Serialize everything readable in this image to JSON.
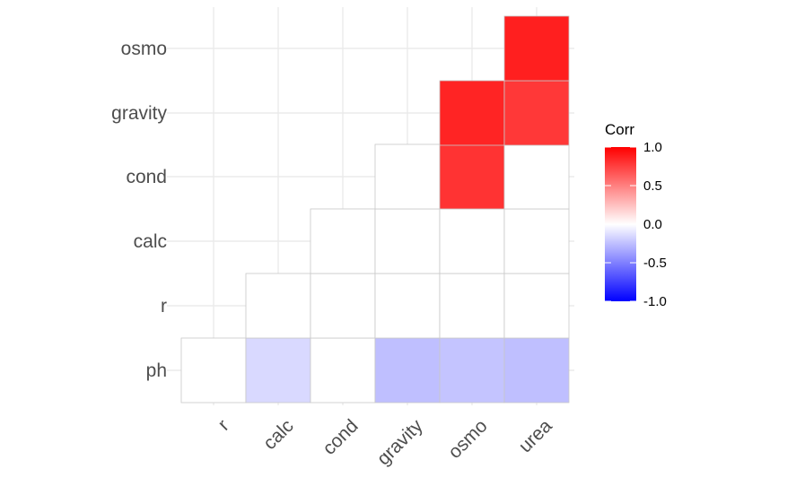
{
  "chart_data": {
    "type": "heatmap",
    "x_categories": [
      "r",
      "calc",
      "cond",
      "gravity",
      "osmo",
      "urea"
    ],
    "y_categories": [
      "ph",
      "r",
      "calc",
      "cond",
      "gravity",
      "osmo"
    ],
    "cells": [
      {
        "x": "r",
        "y": "ph",
        "value": 0.0
      },
      {
        "x": "calc",
        "y": "ph",
        "value": -0.15
      },
      {
        "x": "cond",
        "y": "ph",
        "value": 0.0
      },
      {
        "x": "gravity",
        "y": "ph",
        "value": -0.25
      },
      {
        "x": "osmo",
        "y": "ph",
        "value": -0.23
      },
      {
        "x": "urea",
        "y": "ph",
        "value": -0.25
      },
      {
        "x": "calc",
        "y": "r",
        "value": 0.0
      },
      {
        "x": "cond",
        "y": "r",
        "value": 0.0
      },
      {
        "x": "gravity",
        "y": "r",
        "value": 0.0
      },
      {
        "x": "osmo",
        "y": "r",
        "value": 0.0
      },
      {
        "x": "urea",
        "y": "r",
        "value": 0.0
      },
      {
        "x": "cond",
        "y": "calc",
        "value": 0.0
      },
      {
        "x": "gravity",
        "y": "calc",
        "value": 0.0
      },
      {
        "x": "osmo",
        "y": "calc",
        "value": 0.0
      },
      {
        "x": "urea",
        "y": "calc",
        "value": 0.0
      },
      {
        "x": "gravity",
        "y": "cond",
        "value": 0.0
      },
      {
        "x": "osmo",
        "y": "cond",
        "value": 0.8
      },
      {
        "x": "urea",
        "y": "cond",
        "value": 0.0
      },
      {
        "x": "osmo",
        "y": "gravity",
        "value": 0.86
      },
      {
        "x": "urea",
        "y": "gravity",
        "value": 0.78
      },
      {
        "x": "urea",
        "y": "osmo",
        "value": 0.88
      }
    ],
    "legend": {
      "title": "Corr",
      "ticks": [
        "1.0",
        "0.5",
        "0.0",
        "-0.5",
        "-1.0"
      ],
      "tick_values": [
        1.0,
        0.5,
        0.0,
        -0.5,
        -1.0
      ],
      "range": [
        -1,
        1
      ],
      "low_color": "#0000ff",
      "mid_color": "#ffffff",
      "high_color": "#ff0000",
      "placement": "right"
    },
    "grid": true,
    "title": "",
    "xlabel": "",
    "ylabel": ""
  }
}
